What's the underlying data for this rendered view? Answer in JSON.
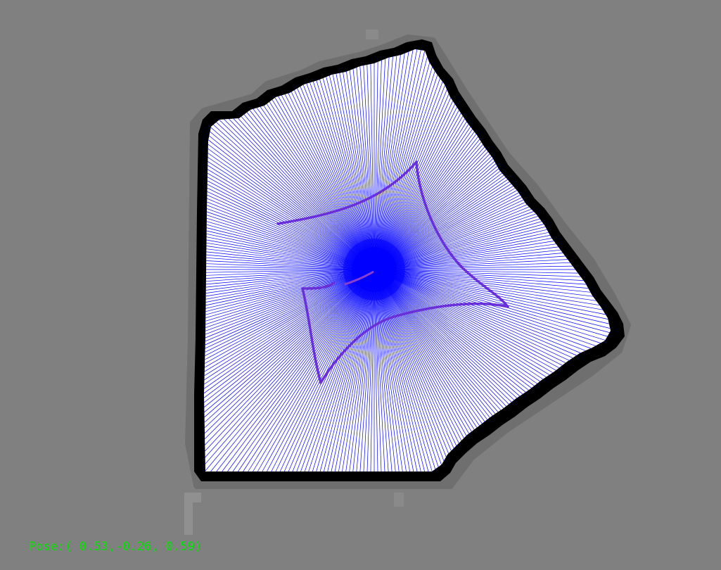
{
  "status": {
    "pose_label": "Pose:",
    "pose_values": "( 0.53,-0.26, 0.59)",
    "text_color": "#00e600"
  },
  "colors": {
    "background": "#808080",
    "free_space": "#ffffff",
    "occupied": "#000000",
    "laser_beams": "#0000ff",
    "trajectory": "#6a2fd8",
    "robot_blob": "#0000ff"
  },
  "icons": {
    "robot": "robot-marker-icon"
  }
}
